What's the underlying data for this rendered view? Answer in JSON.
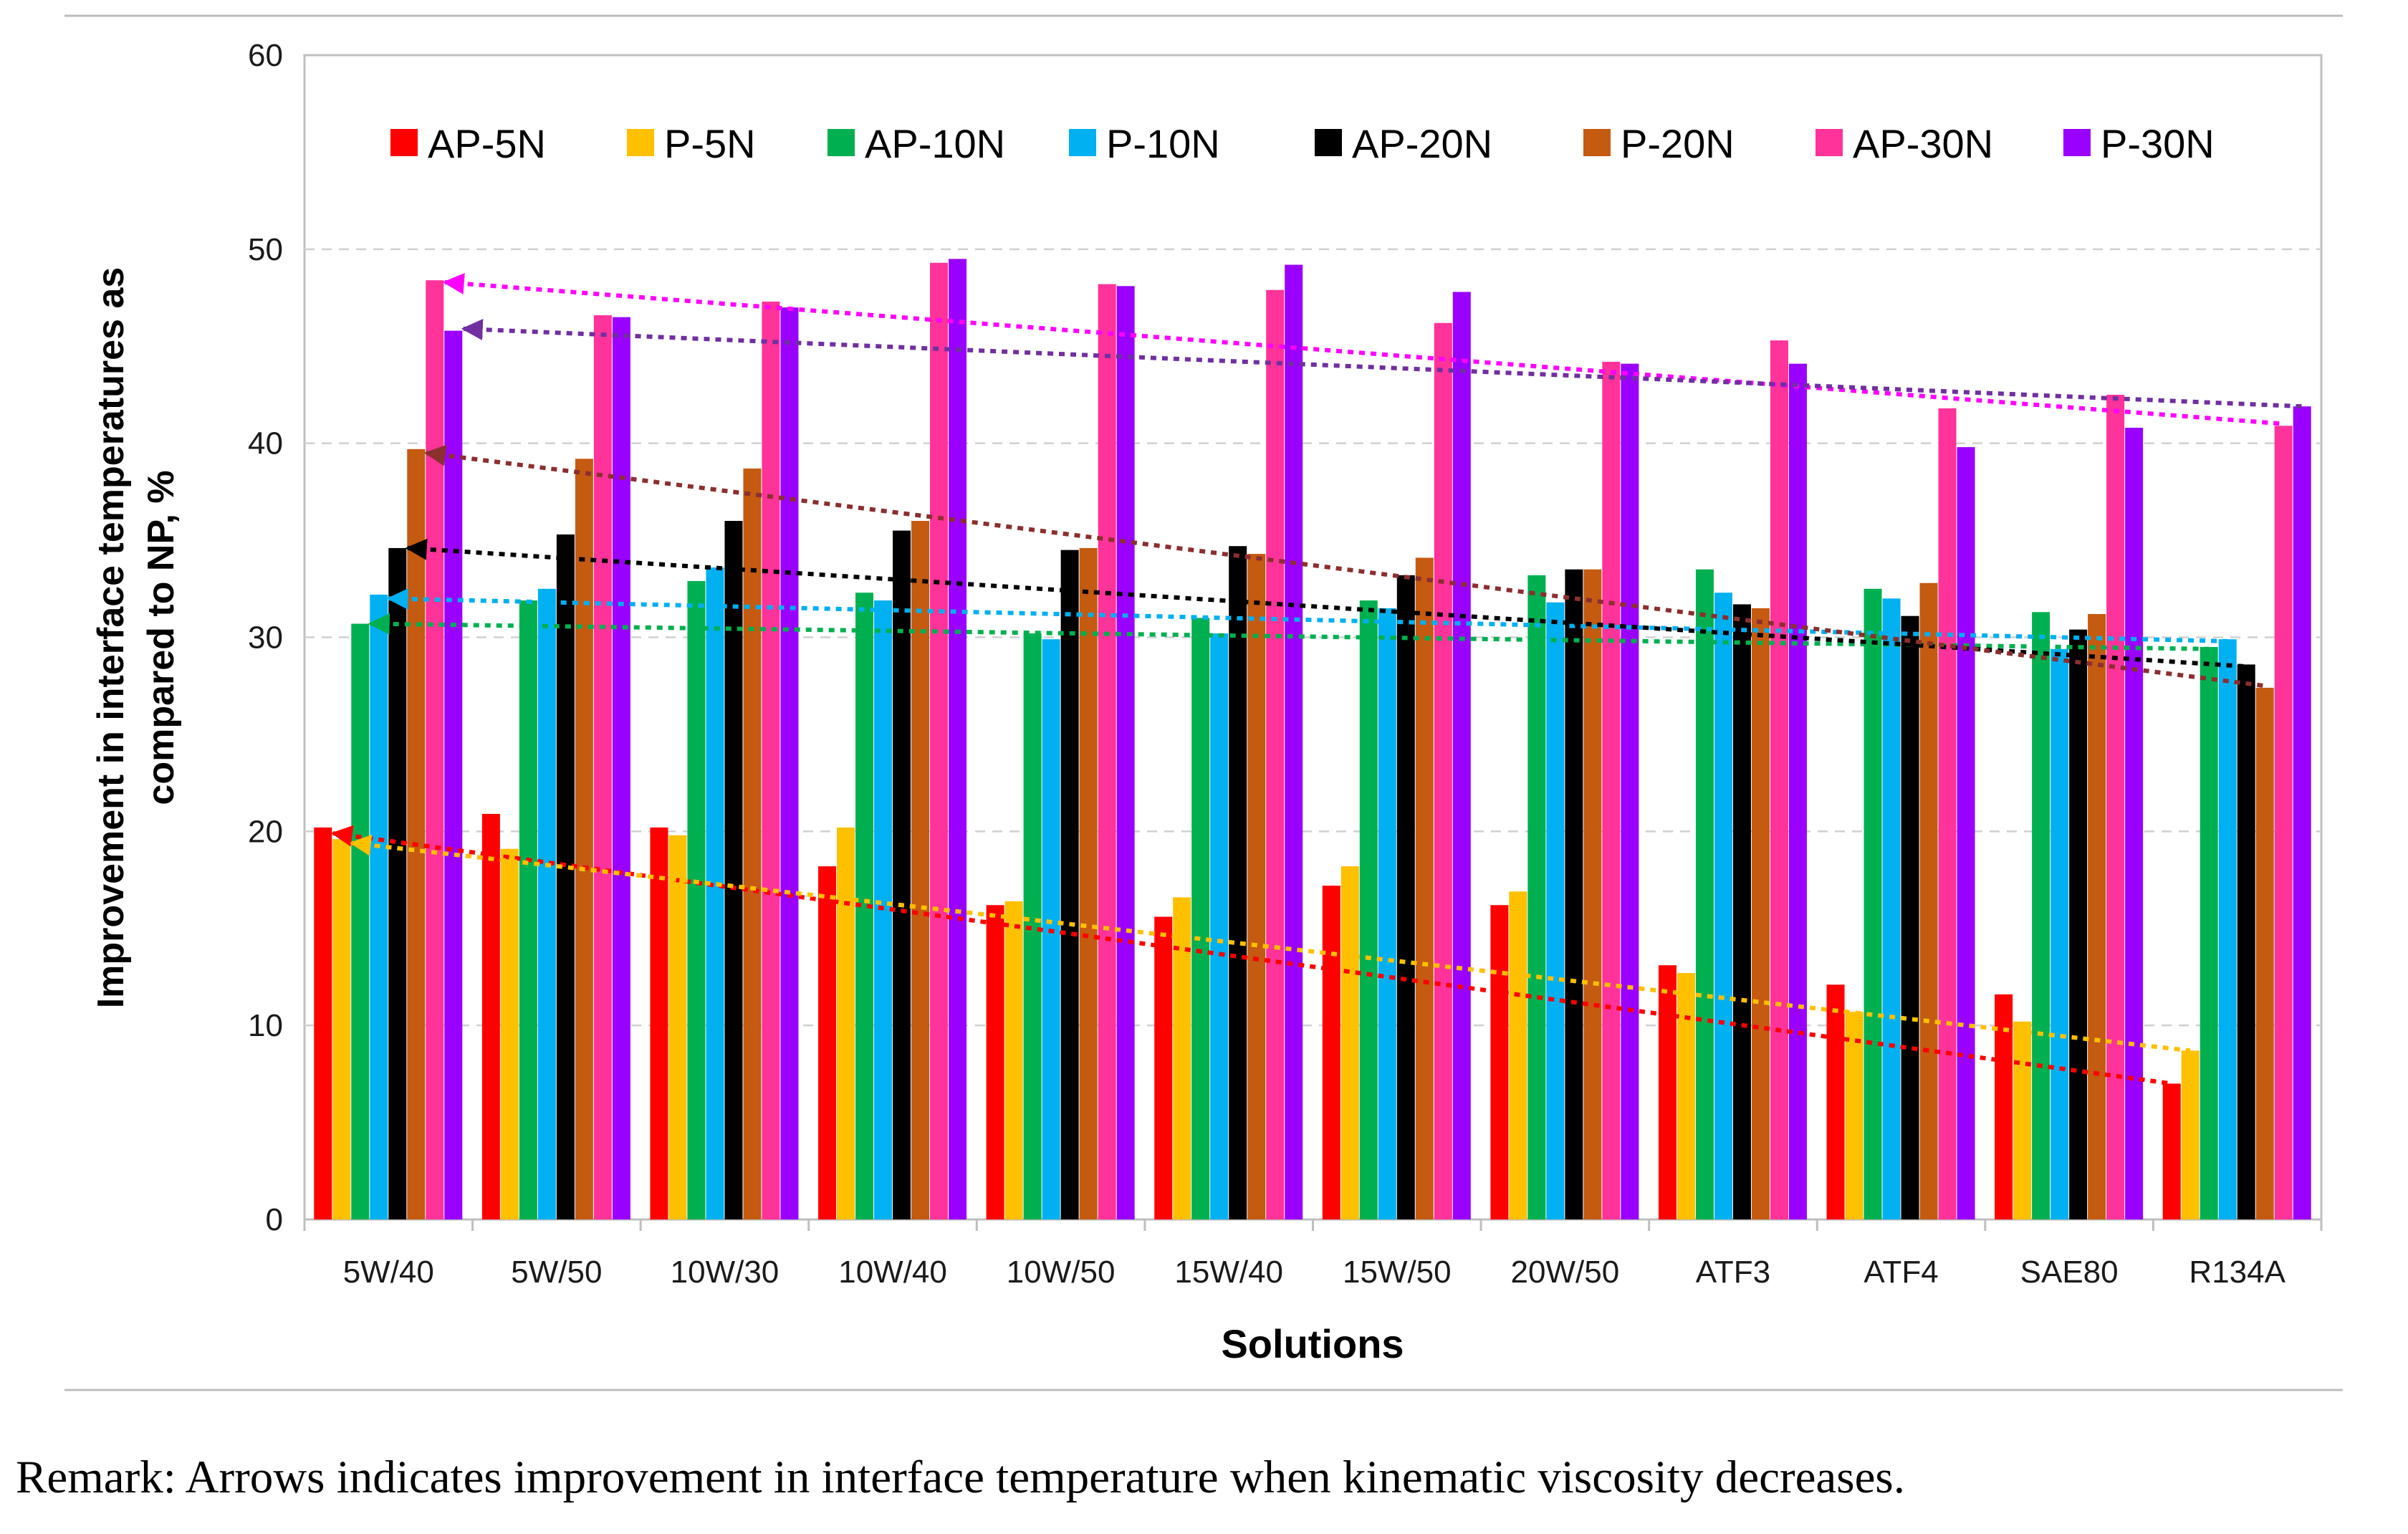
{
  "remark": "Remark: Arrows indicates improvement in interface temperature when kinematic viscosity decreases.",
  "chart_data": {
    "type": "bar",
    "title": "",
    "xlabel": "Solutions",
    "ylabel_line1": "Improvement in interface temperatures as",
    "ylabel_line2": "compared to NP, %",
    "ylim": [
      0,
      60
    ],
    "yticks": [
      0,
      10,
      20,
      30,
      40,
      50,
      60
    ],
    "grid": true,
    "legend_position": "top",
    "categories": [
      "5W/40",
      "5W/50",
      "10W/30",
      "10W/40",
      "10W/50",
      "15W/40",
      "15W/50",
      "20W/50",
      "ATF3",
      "ATF4",
      "SAE80",
      "R134A"
    ],
    "series": [
      {
        "name": "AP-5N",
        "color": "#ff0000",
        "values": [
          20.2,
          20.9,
          20.2,
          18.2,
          16.2,
          15.6,
          17.2,
          16.2,
          13.1,
          12.1,
          11.6,
          7.0
        ]
      },
      {
        "name": "P-5N",
        "color": "#ffc000",
        "values": [
          19.6,
          19.1,
          19.8,
          20.2,
          16.4,
          16.6,
          18.2,
          16.9,
          12.7,
          10.7,
          10.2,
          8.7
        ]
      },
      {
        "name": "AP-10N",
        "color": "#00b050",
        "values": [
          30.7,
          31.9,
          32.9,
          32.3,
          30.2,
          31.0,
          31.9,
          33.2,
          33.5,
          32.5,
          31.3,
          29.5
        ]
      },
      {
        "name": "P-10N",
        "color": "#00b0f0",
        "values": [
          32.2,
          32.5,
          33.6,
          31.9,
          29.9,
          30.2,
          31.5,
          31.8,
          32.3,
          32.0,
          29.4,
          29.9
        ]
      },
      {
        "name": "AP-20N",
        "color": "#000000",
        "values": [
          34.6,
          35.3,
          36.0,
          35.5,
          34.5,
          34.7,
          33.2,
          33.5,
          31.7,
          31.1,
          30.4,
          28.6
        ]
      },
      {
        "name": "P-20N",
        "color": "#c55a11",
        "values": [
          39.7,
          39.2,
          38.7,
          36.0,
          34.6,
          34.3,
          34.1,
          33.5,
          31.5,
          32.8,
          31.2,
          27.4
        ]
      },
      {
        "name": "AP-30N",
        "color": "#ff3399",
        "values": [
          48.4,
          46.6,
          47.3,
          49.3,
          48.2,
          47.9,
          46.2,
          44.2,
          45.3,
          41.8,
          42.5,
          40.9
        ]
      },
      {
        "name": "P-30N",
        "color": "#9900ff",
        "values": [
          45.8,
          46.5,
          47.0,
          49.5,
          48.1,
          49.2,
          47.8,
          44.1,
          44.1,
          39.8,
          40.8,
          41.9
        ]
      }
    ],
    "trend_arrows": [
      {
        "series": "AP-5N",
        "color": "#ff0000",
        "from": 19.9,
        "to": 7.0
      },
      {
        "series": "P-5N",
        "color": "#ffc000",
        "from": 19.4,
        "to": 8.7
      },
      {
        "series": "AP-10N",
        "color": "#00b050",
        "from": 30.7,
        "to": 29.4
      },
      {
        "series": "P-10N",
        "color": "#00b0f0",
        "from": 32.0,
        "to": 29.8
      },
      {
        "series": "AP-20N",
        "color": "#000000",
        "from": 34.6,
        "to": 28.5
      },
      {
        "series": "P-20N",
        "color": "#8b2f2f",
        "from": 39.5,
        "to": 27.5
      },
      {
        "series": "AP-30N",
        "color": "#ff00ff",
        "from": 48.3,
        "to": 41.0
      },
      {
        "series": "P-30N",
        "color": "#7030a0",
        "from": 45.9,
        "to": 41.9
      }
    ]
  }
}
